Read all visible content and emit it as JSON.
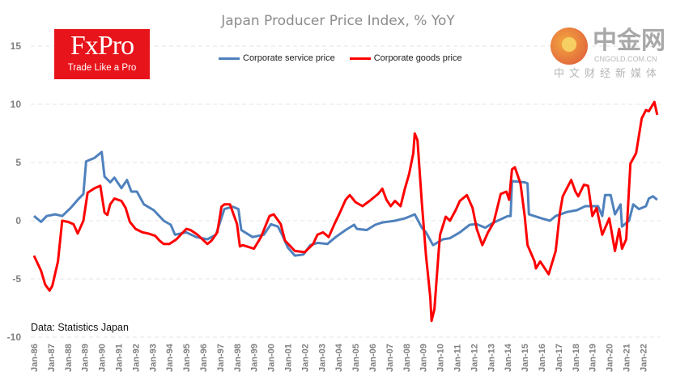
{
  "logo": {
    "brand": "FxPro",
    "tagline": "Trade Like a Pro",
    "color": "#e8141b"
  },
  "watermark": {
    "name": "中金网",
    "url": "CNGOLD.COM.CN",
    "sub": "中文财经新媒体"
  },
  "source": "Data: Statistics Japan",
  "chart_data": {
    "type": "line",
    "title": "Japan Producer Price Index, % YoY",
    "xlabel": "",
    "ylabel": "",
    "ylim": [
      -10,
      15
    ],
    "yticks": [
      15,
      10,
      5,
      0,
      -5,
      -10
    ],
    "xlim": [
      "1986-01",
      "2022-11"
    ],
    "xticks": [
      "Jan-86",
      "Jan-87",
      "Jan-88",
      "Jan-89",
      "Jan-90",
      "Jan-91",
      "Jan-92",
      "Jan-93",
      "Jan-94",
      "Jan-95",
      "Jan-96",
      "Jan-97",
      "Jan-98",
      "Jan-99",
      "Jan-00",
      "Jan-01",
      "Jan-02",
      "Jan-03",
      "Jan-04",
      "Jan-05",
      "Jan-06",
      "Jan-07",
      "Jan-08",
      "Jan-09",
      "Jan-10",
      "Jan-11",
      "Jan-12",
      "Jan-13",
      "Jan-14",
      "Jan-15",
      "Jan-16",
      "Jan-17",
      "Jan-18",
      "Jan-19",
      "Jan-20",
      "Jan-21",
      "Jan-22"
    ],
    "grid": true,
    "legend_position": "top",
    "series": [
      {
        "name": "Corporate service price",
        "color": "#4f81bd",
        "points": [
          [
            "1986-01",
            0.4
          ],
          [
            "1986-06",
            -0.1
          ],
          [
            "1986-10",
            0.4
          ],
          [
            "1987-04",
            0.55
          ],
          [
            "1987-09",
            0.4
          ],
          [
            "1988-03",
            1.1
          ],
          [
            "1988-08",
            1.8
          ],
          [
            "1988-12",
            2.3
          ],
          [
            "1989-02",
            5.1
          ],
          [
            "1989-08",
            5.4
          ],
          [
            "1990-01",
            5.9
          ],
          [
            "1990-03",
            3.8
          ],
          [
            "1990-07",
            3.3
          ],
          [
            "1990-10",
            3.7
          ],
          [
            "1991-03",
            2.8
          ],
          [
            "1991-07",
            3.5
          ],
          [
            "1991-10",
            2.5
          ],
          [
            "1992-02",
            2.5
          ],
          [
            "1992-07",
            1.4
          ],
          [
            "1993-02",
            0.9
          ],
          [
            "1993-09",
            0.0
          ],
          [
            "1994-02",
            -0.35
          ],
          [
            "1994-05",
            -1.2
          ],
          [
            "1995-01",
            -1.0
          ],
          [
            "1995-08",
            -1.4
          ],
          [
            "1996-04",
            -1.6
          ],
          [
            "1996-10",
            -1.2
          ],
          [
            "1997-04",
            1.0
          ],
          [
            "1997-10",
            1.2
          ],
          [
            "1998-02",
            1.0
          ],
          [
            "1998-04",
            -0.8
          ],
          [
            "1998-12",
            -1.4
          ],
          [
            "1999-08",
            -1.2
          ],
          [
            "2000-01",
            -0.3
          ],
          [
            "2000-06",
            -0.5
          ],
          [
            "2000-09",
            -1.2
          ],
          [
            "2001-01",
            -2.3
          ],
          [
            "2001-06",
            -3.0
          ],
          [
            "2001-12",
            -2.9
          ],
          [
            "2002-05",
            -2.1
          ],
          [
            "2002-10",
            -1.9
          ],
          [
            "2003-05",
            -2.0
          ],
          [
            "2003-11",
            -1.4
          ],
          [
            "2004-06",
            -0.8
          ],
          [
            "2004-12",
            -0.35
          ],
          [
            "2005-02",
            -0.7
          ],
          [
            "2005-09",
            -0.8
          ],
          [
            "2006-03",
            -0.35
          ],
          [
            "2006-08",
            -0.15
          ],
          [
            "2007-05",
            0.0
          ],
          [
            "2007-12",
            0.2
          ],
          [
            "2008-07",
            0.55
          ],
          [
            "2008-12",
            -0.6
          ],
          [
            "2009-03",
            -1.0
          ],
          [
            "2009-08",
            -2.1
          ],
          [
            "2010-03",
            -1.6
          ],
          [
            "2010-08",
            -1.5
          ],
          [
            "2011-03",
            -1.0
          ],
          [
            "2011-10",
            -0.35
          ],
          [
            "2012-03",
            -0.3
          ],
          [
            "2012-09",
            -0.6
          ],
          [
            "2013-03",
            -0.15
          ],
          [
            "2014-01",
            0.4
          ],
          [
            "2014-03",
            0.4
          ],
          [
            "2014-04",
            3.4
          ],
          [
            "2015-01",
            3.3
          ],
          [
            "2015-03",
            3.2
          ],
          [
            "2015-04",
            0.55
          ],
          [
            "2016-01",
            0.2
          ],
          [
            "2016-07",
            0.0
          ],
          [
            "2016-11",
            0.4
          ],
          [
            "2017-07",
            0.75
          ],
          [
            "2018-02",
            0.9
          ],
          [
            "2018-08",
            1.25
          ],
          [
            "2019-05",
            1.25
          ],
          [
            "2019-08",
            0.4
          ],
          [
            "2019-10",
            2.2
          ],
          [
            "2020-02",
            2.2
          ],
          [
            "2020-05",
            0.55
          ],
          [
            "2020-09",
            1.4
          ],
          [
            "2020-10",
            -0.5
          ],
          [
            "2021-03",
            0.0
          ],
          [
            "2021-06",
            1.4
          ],
          [
            "2021-10",
            1.0
          ],
          [
            "2022-03",
            1.25
          ],
          [
            "2022-05",
            1.9
          ],
          [
            "2022-08",
            2.1
          ],
          [
            "2022-11",
            1.8
          ]
        ]
      },
      {
        "name": "Corporate goods price",
        "color": "#ff0000",
        "points": [
          [
            "1986-01",
            -3.0
          ],
          [
            "1986-06",
            -4.3
          ],
          [
            "1986-09",
            -5.5
          ],
          [
            "1986-12",
            -6.0
          ],
          [
            "1987-02",
            -5.6
          ],
          [
            "1987-06",
            -3.5
          ],
          [
            "1987-09",
            0.0
          ],
          [
            "1988-01",
            -0.1
          ],
          [
            "1988-05",
            -0.3
          ],
          [
            "1988-08",
            -1.1
          ],
          [
            "1988-12",
            0.0
          ],
          [
            "1989-03",
            2.4
          ],
          [
            "1989-08",
            2.8
          ],
          [
            "1989-12",
            3.0
          ],
          [
            "1990-03",
            0.7
          ],
          [
            "1990-05",
            0.5
          ],
          [
            "1990-07",
            1.4
          ],
          [
            "1990-10",
            1.9
          ],
          [
            "1991-03",
            1.7
          ],
          [
            "1991-06",
            1.1
          ],
          [
            "1991-09",
            -0.1
          ],
          [
            "1992-01",
            -0.7
          ],
          [
            "1992-06",
            -1.0
          ],
          [
            "1992-10",
            -1.1
          ],
          [
            "1993-03",
            -1.3
          ],
          [
            "1993-06",
            -1.7
          ],
          [
            "1993-09",
            -2.0
          ],
          [
            "1994-01",
            -2.0
          ],
          [
            "1994-06",
            -1.6
          ],
          [
            "1995-01",
            -0.7
          ],
          [
            "1995-04",
            -0.8
          ],
          [
            "1995-09",
            -1.2
          ],
          [
            "1996-04",
            -2.0
          ],
          [
            "1996-07",
            -1.7
          ],
          [
            "1996-11",
            -1.0
          ],
          [
            "1997-02",
            1.2
          ],
          [
            "1997-04",
            1.4
          ],
          [
            "1997-08",
            1.4
          ],
          [
            "1998-01",
            -0.3
          ],
          [
            "1998-03",
            -2.2
          ],
          [
            "1998-05",
            -2.1
          ],
          [
            "1999-01",
            -2.4
          ],
          [
            "1999-06",
            -1.4
          ],
          [
            "1999-12",
            0.4
          ],
          [
            "2000-03",
            0.55
          ],
          [
            "2000-08",
            -0.3
          ],
          [
            "2000-11",
            -1.7
          ],
          [
            "2001-06",
            -2.6
          ],
          [
            "2002-01",
            -2.7
          ],
          [
            "2002-07",
            -2.0
          ],
          [
            "2002-10",
            -1.2
          ],
          [
            "2003-02",
            -1.0
          ],
          [
            "2003-06",
            -1.4
          ],
          [
            "2003-10",
            -0.3
          ],
          [
            "2004-02",
            0.7
          ],
          [
            "2004-06",
            1.8
          ],
          [
            "2004-09",
            2.2
          ],
          [
            "2005-01",
            1.6
          ],
          [
            "2005-06",
            1.25
          ],
          [
            "2005-11",
            1.7
          ],
          [
            "2006-05",
            2.3
          ],
          [
            "2006-08",
            2.75
          ],
          [
            "2006-11",
            1.8
          ],
          [
            "2007-02",
            1.25
          ],
          [
            "2007-05",
            1.7
          ],
          [
            "2007-09",
            1.25
          ],
          [
            "2007-12",
            2.75
          ],
          [
            "2008-03",
            4.0
          ],
          [
            "2008-06",
            5.8
          ],
          [
            "2008-07",
            7.5
          ],
          [
            "2008-09",
            6.9
          ],
          [
            "2008-12",
            1.6
          ],
          [
            "2009-03",
            -3.0
          ],
          [
            "2009-06",
            -6.5
          ],
          [
            "2009-07",
            -8.6
          ],
          [
            "2009-09",
            -7.6
          ],
          [
            "2009-12",
            -2.6
          ],
          [
            "2010-01",
            -1.2
          ],
          [
            "2010-05",
            0.35
          ],
          [
            "2010-08",
            0.0
          ],
          [
            "2010-12",
            0.9
          ],
          [
            "2011-03",
            1.7
          ],
          [
            "2011-08",
            2.2
          ],
          [
            "2011-12",
            1.1
          ],
          [
            "2012-03",
            -0.7
          ],
          [
            "2012-07",
            -2.1
          ],
          [
            "2012-11",
            -1.0
          ],
          [
            "2013-03",
            -0.15
          ],
          [
            "2013-08",
            2.3
          ],
          [
            "2013-12",
            2.5
          ],
          [
            "2014-02",
            1.8
          ],
          [
            "2014-04",
            4.4
          ],
          [
            "2014-06",
            4.6
          ],
          [
            "2014-10",
            3.2
          ],
          [
            "2015-01",
            0.4
          ],
          [
            "2015-03",
            -2.1
          ],
          [
            "2015-08",
            -3.5
          ],
          [
            "2015-09",
            -4.1
          ],
          [
            "2015-12",
            -3.5
          ],
          [
            "2016-06",
            -4.6
          ],
          [
            "2016-11",
            -2.6
          ],
          [
            "2017-02",
            0.7
          ],
          [
            "2017-04",
            2.1
          ],
          [
            "2017-10",
            3.5
          ],
          [
            "2018-01",
            2.5
          ],
          [
            "2018-03",
            2.1
          ],
          [
            "2018-07",
            3.1
          ],
          [
            "2018-10",
            3.0
          ],
          [
            "2019-01",
            0.4
          ],
          [
            "2019-04",
            1.1
          ],
          [
            "2019-08",
            -1.2
          ],
          [
            "2020-01",
            0.2
          ],
          [
            "2020-05",
            -2.6
          ],
          [
            "2020-08",
            -0.7
          ],
          [
            "2020-10",
            -2.4
          ],
          [
            "2021-01",
            -1.6
          ],
          [
            "2021-04",
            4.9
          ],
          [
            "2021-08",
            5.8
          ],
          [
            "2021-12",
            8.8
          ],
          [
            "2022-03",
            9.5
          ],
          [
            "2022-05",
            9.4
          ],
          [
            "2022-09",
            10.2
          ],
          [
            "2022-11",
            9.1
          ]
        ]
      }
    ]
  }
}
